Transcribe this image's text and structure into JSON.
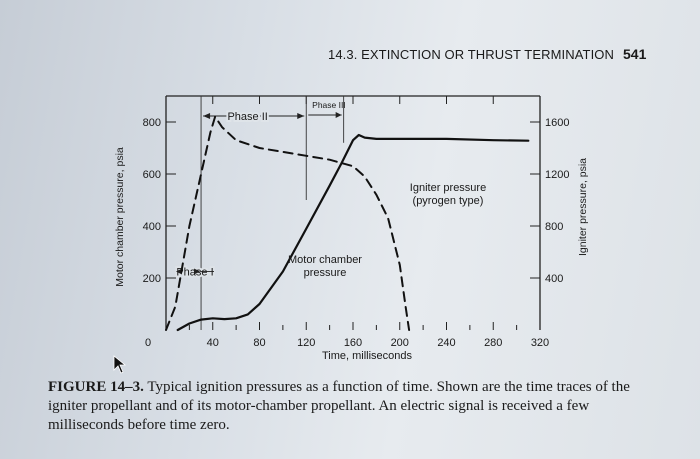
{
  "header": {
    "running_title": "14.3. EXTINCTION OR THRUST TERMINATION",
    "page_number": "541"
  },
  "chart_data": {
    "type": "line",
    "title": "",
    "xlabel": "Time, milliseconds",
    "ylabel_left": "Motor chamber pressure, psia",
    "ylabel_right": "Igniter pressure, psia",
    "x_ticks": [
      "0",
      "40",
      "80",
      "120",
      "160",
      "200",
      "240",
      "280",
      "320"
    ],
    "y_left_ticks": [
      "200",
      "400",
      "600",
      "800"
    ],
    "y_right_ticks": [
      "400",
      "800",
      "1200",
      "1600"
    ],
    "xlim": [
      0,
      320
    ],
    "ylim_left": [
      0,
      900
    ],
    "ylim_right": [
      0,
      1800
    ],
    "phase_labels": {
      "phase1": "Phase I",
      "phase2": "Phase II",
      "phase3": "Phase III"
    },
    "series": [
      {
        "name": "Igniter pressure (pyrogen type)",
        "style": "dashed",
        "axis": "right",
        "x": [
          0,
          8,
          20,
          30,
          38,
          42,
          48,
          60,
          80,
          100,
          120,
          140,
          160,
          170,
          180,
          190,
          200,
          205,
          208
        ],
        "y": [
          0,
          180,
          800,
          1200,
          1520,
          1640,
          1560,
          1460,
          1400,
          1370,
          1340,
          1310,
          1260,
          1180,
          1040,
          860,
          500,
          180,
          0
        ]
      },
      {
        "name": "Motor chamber pressure",
        "style": "solid",
        "axis": "left",
        "x": [
          10,
          20,
          30,
          40,
          50,
          60,
          70,
          80,
          100,
          120,
          140,
          150,
          160,
          165,
          170,
          180,
          200,
          240,
          280,
          310
        ],
        "y": [
          0,
          25,
          40,
          45,
          42,
          45,
          60,
          100,
          225,
          390,
          555,
          640,
          730,
          750,
          740,
          735,
          735,
          735,
          730,
          728
        ]
      }
    ],
    "annotations": {
      "igniter_label_line1": "Igniter pressure",
      "igniter_label_line2": "(pyrogen type)",
      "motor_label_line1": "Motor chamber",
      "motor_label_line2": "pressure"
    },
    "phase_boundaries_x": [
      30,
      120,
      152
    ]
  },
  "caption": {
    "label": "FIGURE 14–3.",
    "text": " Typical ignition pressures as a function of time. Shown are the time traces of the igniter propellant and of its motor-chamber propellant. An electric signal is received a few milliseconds before time zero."
  }
}
